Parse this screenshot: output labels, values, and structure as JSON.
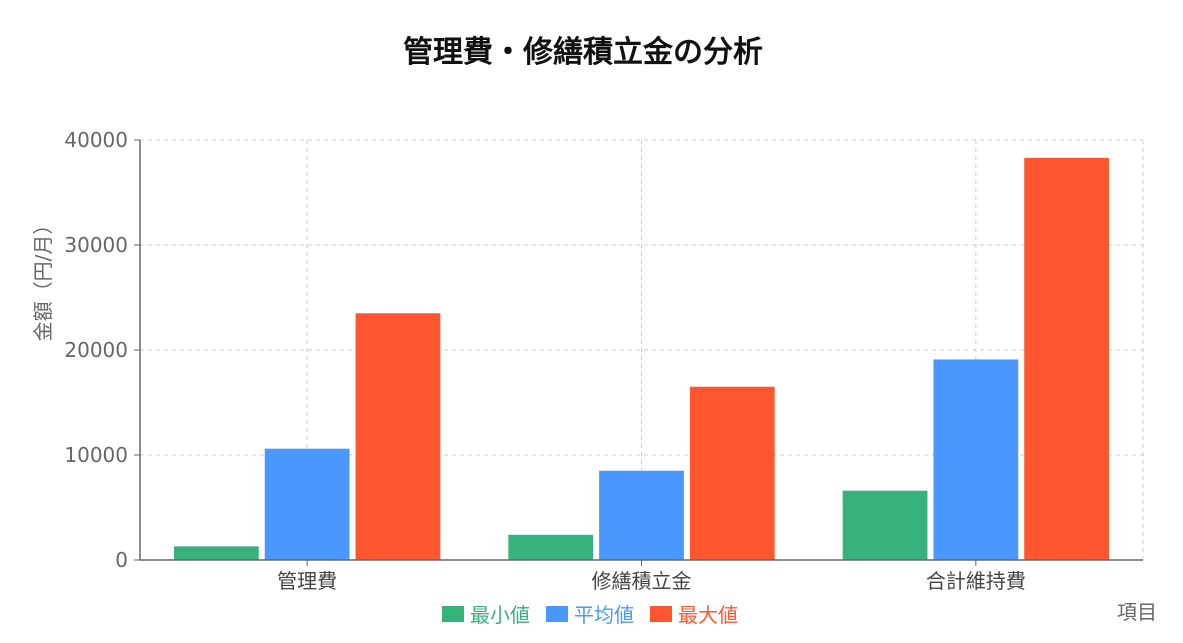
{
  "chart_data": {
    "type": "bar",
    "title": "管理費・修繕積立金の分析",
    "xlabel": "項目",
    "ylabel": "金額（円/月）",
    "categories": [
      "管理費",
      "修繕積立金",
      "合計維持費"
    ],
    "series": [
      {
        "name": "最小値",
        "color": "#38b27d",
        "values": [
          1300,
          2400,
          6600
        ]
      },
      {
        "name": "平均値",
        "color": "#4a98ff",
        "values": [
          10600,
          8500,
          19100
        ]
      },
      {
        "name": "最大値",
        "color": "#ff5630",
        "values": [
          23500,
          16500,
          38300
        ]
      }
    ],
    "ylim": [
      0,
      40000
    ],
    "yticks": [
      0,
      10000,
      20000,
      30000,
      40000
    ],
    "grid": true,
    "legend_position": "bottom"
  }
}
